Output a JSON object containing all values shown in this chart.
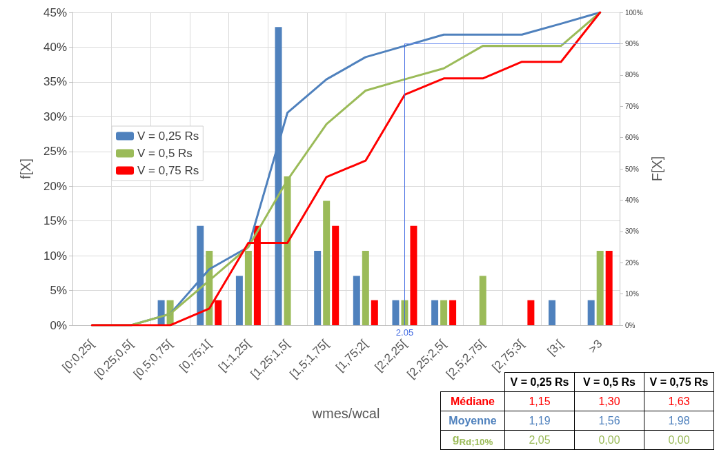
{
  "chart_data": {
    "type": "bar",
    "xlabel": "wmes/wcal",
    "ylabel": "f[X]",
    "y2label": "F[X]",
    "categories": [
      "[0;0,25[",
      "[0,25;0,5[",
      "[0,5;0,75[",
      "[0,75;1[",
      "[1;1,25[",
      "[1,25;1,5[",
      "[1,5;1,75[",
      "[1,75;2[",
      "[2;2,25[",
      "[2,25;2,5[",
      "[2,5;2,75[",
      "[2,75;3[",
      "[3;[",
      ">3"
    ],
    "series": [
      {
        "name": "V = 0,25 Rs",
        "color": "#4f81bd",
        "values": [
          0,
          0,
          3.6,
          14.3,
          7.1,
          42.9,
          10.7,
          7.1,
          3.6,
          3.6,
          0,
          0,
          3.6,
          3.6
        ]
      },
      {
        "name": "V = 0,5 Rs",
        "color": "#9bbb59",
        "values": [
          0,
          0,
          3.6,
          10.7,
          10.7,
          21.4,
          17.9,
          10.7,
          3.6,
          3.6,
          7.1,
          0,
          0,
          10.7
        ]
      },
      {
        "name": "V = 0,75 Rs",
        "color": "#ff0000",
        "values": [
          0,
          0,
          0,
          3.6,
          14.3,
          0,
          14.3,
          3.6,
          14.3,
          3.6,
          0,
          3.6,
          0,
          10.7
        ]
      },
      {
        "type": "line",
        "axis": "y2",
        "color": "#4f81bd",
        "values": [
          0,
          0,
          3.6,
          17.9,
          25,
          67.9,
          78.6,
          85.7,
          89.3,
          92.9,
          92.9,
          92.9,
          96.4,
          100
        ]
      },
      {
        "type": "line",
        "axis": "y2",
        "color": "#9bbb59",
        "values": [
          0,
          0,
          3.6,
          14.3,
          25,
          46.4,
          64.3,
          75,
          78.6,
          82.1,
          89.3,
          89.3,
          89.3,
          100
        ]
      },
      {
        "type": "line",
        "axis": "y2",
        "color": "#ff0000",
        "values": [
          0,
          0,
          0,
          5.3,
          26.3,
          26.3,
          47.4,
          52.6,
          73.7,
          78.9,
          78.9,
          84.2,
          84.2,
          100
        ]
      }
    ],
    "ylim": [
      0,
      45
    ],
    "yticks": [
      {
        "value": 0,
        "label": "0%"
      },
      {
        "value": 5,
        "label": "5%"
      },
      {
        "value": 10,
        "label": "10%"
      },
      {
        "value": 15,
        "label": "15%"
      },
      {
        "value": 20,
        "label": "20%"
      },
      {
        "value": 25,
        "label": "25%"
      },
      {
        "value": 30,
        "label": "30%"
      },
      {
        "value": 35,
        "label": "35%"
      },
      {
        "value": 40,
        "label": "40%"
      },
      {
        "value": 45,
        "label": "45%"
      }
    ],
    "y2lim": [
      0,
      100
    ],
    "y2ticks": [
      {
        "value": 0,
        "label": "0%"
      },
      {
        "value": 10,
        "label": "10%"
      },
      {
        "value": 20,
        "label": "20%"
      },
      {
        "value": 30,
        "label": "30%"
      },
      {
        "value": 40,
        "label": "40%"
      },
      {
        "value": 50,
        "label": "50%"
      },
      {
        "value": 60,
        "label": "60%"
      },
      {
        "value": 70,
        "label": "70%"
      },
      {
        "value": 80,
        "label": "80%"
      },
      {
        "value": 90,
        "label": "90%"
      },
      {
        "value": 100,
        "label": "100%"
      }
    ],
    "ref_lines": [
      {
        "axis": "x",
        "value": "[2;2,25[",
        "label": "2.05",
        "color": "#4169e1"
      },
      {
        "axis": "y2",
        "value": 90,
        "label": null,
        "color": "#6d8ff0"
      }
    ],
    "annotations": [
      "V = 0,25 Rs",
      "V = 0,5 Rs",
      "V = 0,75 Rs",
      "Médiane",
      "1,15",
      "1,30",
      "1,63",
      "Moyenne",
      "1,19",
      "1,56",
      "1,98",
      "g$_{Rd;10%}$",
      "2,05",
      "0,00",
      "0,00"
    ],
    "grid": true,
    "legend": "left",
    "marker": "none",
    "line_style": "solid"
  }
}
